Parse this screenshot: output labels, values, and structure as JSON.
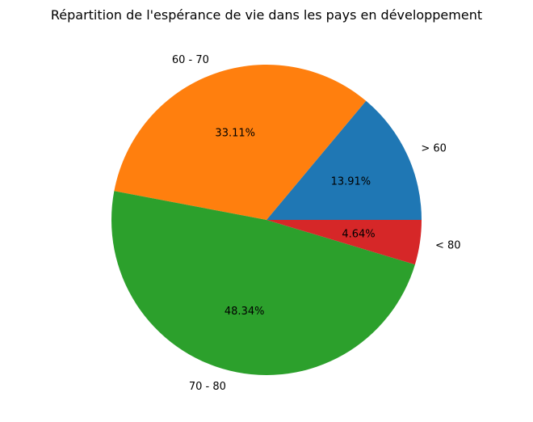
{
  "chart_data": {
    "type": "pie",
    "title": "Répartition de l'espérance de vie dans les pays en développement",
    "slices": [
      {
        "label": "> 60",
        "value": 13.91,
        "pct_label": "13.91%",
        "color": "#1f77b4"
      },
      {
        "label": "60 - 70",
        "value": 33.11,
        "pct_label": "33.11%",
        "color": "#ff7f0e"
      },
      {
        "label": "70 - 80",
        "value": 48.34,
        "pct_label": "48.34%",
        "color": "#2ca02c"
      },
      {
        "label": "< 80",
        "value": 4.64,
        "pct_label": "4.64%",
        "color": "#d62728"
      }
    ],
    "start_angle_deg": 0,
    "direction": "counterclockwise",
    "legend": "none"
  }
}
